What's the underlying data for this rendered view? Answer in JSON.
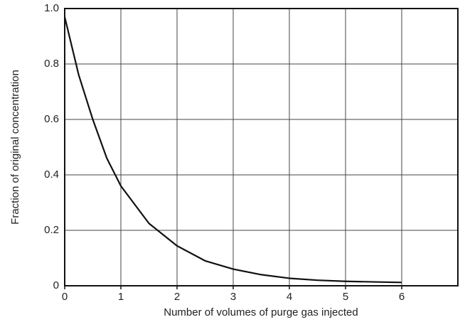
{
  "chart_data": {
    "type": "line",
    "xlabel": "Number of volumes of purge gas injected",
    "ylabel": "Fraction of original concentration",
    "x": [
      0,
      0.25,
      0.5,
      0.75,
      1,
      1.5,
      2,
      2.5,
      3,
      3.5,
      4,
      4.5,
      5,
      5.5,
      6
    ],
    "values": [
      0.97,
      0.76,
      0.6,
      0.46,
      0.36,
      0.225,
      0.144,
      0.09,
      0.06,
      0.04,
      0.027,
      0.02,
      0.016,
      0.014,
      0.012
    ],
    "color": "#111111",
    "xlim": [
      0,
      7
    ],
    "xticks": [
      0,
      1,
      2,
      3,
      4,
      5,
      6
    ],
    "ylim": [
      0,
      1
    ],
    "yticks": [
      0,
      0.2,
      0.4,
      0.6,
      0.8,
      {
        "value": 1,
        "label": "1.0"
      }
    ],
    "grid": true
  }
}
